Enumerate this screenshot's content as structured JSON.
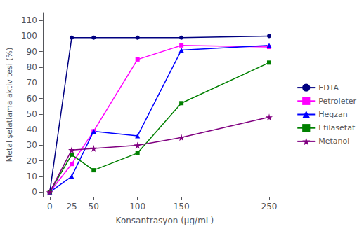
{
  "chart_data": {
    "type": "line",
    "xlabel": "Konsantrasyon (μg/mL)",
    "ylabel": "Metal şelatlama aktivitesi (%)",
    "x": [
      0,
      25,
      50,
      100,
      150,
      250
    ],
    "series": [
      {
        "name": "EDTA",
        "color": "#000080",
        "marker": "circle",
        "values": [
          0,
          99,
          99,
          99,
          99,
          100
        ]
      },
      {
        "name": "Petroleter",
        "color": "#FF00FF",
        "marker": "square",
        "values": [
          0,
          18,
          39,
          85,
          94,
          93
        ]
      },
      {
        "name": "Hegzan",
        "color": "#0000FF",
        "marker": "triangle",
        "values": [
          0,
          10,
          39,
          36,
          91,
          94
        ]
      },
      {
        "name": "Etilasetat",
        "color": "#008000",
        "marker": "square",
        "values": [
          0,
          24,
          14,
          25,
          57,
          83
        ]
      },
      {
        "name": "Metanol",
        "color": "#800080",
        "marker": "star",
        "values": [
          0,
          27,
          28,
          30,
          35,
          48
        ]
      }
    ],
    "xlim": [
      -8,
      270
    ],
    "xticks": [
      0,
      25,
      50,
      100,
      150,
      250
    ],
    "ylim": [
      -3,
      115
    ],
    "yticks": [
      0,
      10,
      20,
      30,
      40,
      50,
      60,
      70,
      80,
      90,
      100,
      110
    ],
    "grid": false,
    "legend": "right"
  }
}
